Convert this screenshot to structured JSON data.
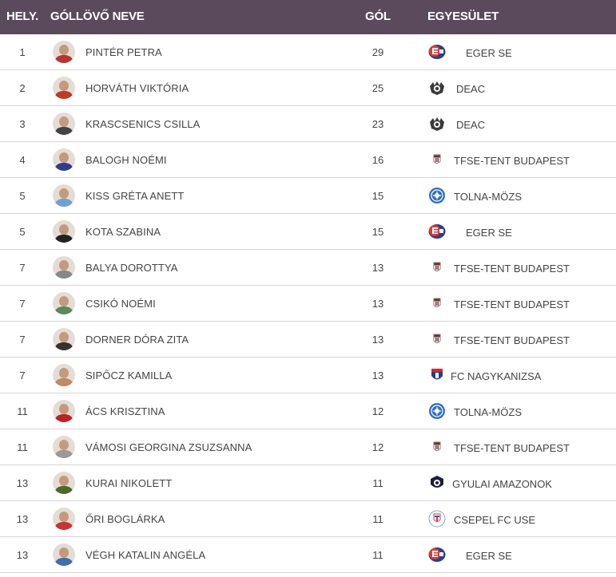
{
  "headers": {
    "rank": "HELY.",
    "name": "GÓLLÖVŐ NEVE",
    "goals": "GÓL",
    "club": "EGYESÜLET"
  },
  "rows": [
    {
      "rank": "1",
      "name": "PINTÉR PETRA",
      "goals": "29",
      "club": "EGER SE",
      "logo": "eger-logo"
    },
    {
      "rank": "2",
      "name": "HORVÁTH VIKTÓRIA",
      "goals": "25",
      "club": "DEAC",
      "logo": "deac-logo"
    },
    {
      "rank": "3",
      "name": "KRASCSENICS CSILLA",
      "goals": "23",
      "club": "DEAC",
      "logo": "deac-logo"
    },
    {
      "rank": "4",
      "name": "BALOGH NOÉMI",
      "goals": "16",
      "club": "TFSE-TENT BUDAPEST",
      "logo": "tfse-logo"
    },
    {
      "rank": "5",
      "name": "KISS GRÉTA ANETT",
      "goals": "15",
      "club": "TOLNA-MÖZS",
      "logo": "tolna-logo"
    },
    {
      "rank": "5",
      "name": "KOTA SZABINA",
      "goals": "15",
      "club": "EGER SE",
      "logo": "eger-logo"
    },
    {
      "rank": "7",
      "name": "BALYA DOROTTYA",
      "goals": "13",
      "club": "TFSE-TENT BUDAPEST",
      "logo": "tfse-logo"
    },
    {
      "rank": "7",
      "name": "CSIKÓ NOÉMI",
      "goals": "13",
      "club": "TFSE-TENT BUDAPEST",
      "logo": "tfse-logo"
    },
    {
      "rank": "7",
      "name": "DORNER DÓRA ZITA",
      "goals": "13",
      "club": "TFSE-TENT BUDAPEST",
      "logo": "tfse-logo"
    },
    {
      "rank": "7",
      "name": "SIPŐCZ KAMILLA",
      "goals": "13",
      "club": "FC NAGYKANIZSA",
      "logo": "nagykanizsa-logo"
    },
    {
      "rank": "11",
      "name": "ÁCS KRISZTINA",
      "goals": "12",
      "club": "TOLNA-MÖZS",
      "logo": "tolna-logo"
    },
    {
      "rank": "11",
      "name": "VÁMOSI GEORGINA ZSUZSANNA",
      "goals": "12",
      "club": "TFSE-TENT BUDAPEST",
      "logo": "tfse-logo"
    },
    {
      "rank": "13",
      "name": "KURAI NIKOLETT",
      "goals": "11",
      "club": "GYULAI AMAZONOK",
      "logo": "gyula-logo"
    },
    {
      "rank": "13",
      "name": "ŐRI BOGLÁRKA",
      "goals": "11",
      "club": "CSEPEL FC USE",
      "logo": "csepel-logo"
    },
    {
      "rank": "13",
      "name": "VÉGH KATALIN ANGÉLA",
      "goals": "11",
      "club": "EGER SE",
      "logo": "eger-logo"
    }
  ],
  "colors": {
    "header_bg": "#5b4a5c",
    "header_text": "#ffffff",
    "row_border": "#d6d6d6",
    "text": "#444444"
  }
}
